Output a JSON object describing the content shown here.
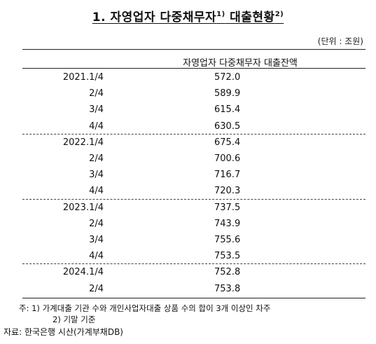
{
  "title": {
    "text": "1. 자영업자 다중채무자",
    "sup1": "1)",
    "text2": " 대출현황",
    "sup2": "2)"
  },
  "unit": "(단위 : 조원)",
  "column_header": "자영업자 다중채무자 대출잔액",
  "groups": [
    {
      "rows": [
        {
          "period": "2021.1/4",
          "value": "572.0"
        },
        {
          "period": "2/4",
          "value": "589.9"
        },
        {
          "period": "3/4",
          "value": "615.4"
        },
        {
          "period": "4/4",
          "value": "630.5"
        }
      ]
    },
    {
      "rows": [
        {
          "period": "2022.1/4",
          "value": "675.4"
        },
        {
          "period": "2/4",
          "value": "700.6"
        },
        {
          "period": "3/4",
          "value": "716.7"
        },
        {
          "period": "4/4",
          "value": "720.3"
        }
      ]
    },
    {
      "rows": [
        {
          "period": "2023.1/4",
          "value": "737.5"
        },
        {
          "period": "2/4",
          "value": "743.9"
        },
        {
          "period": "3/4",
          "value": "755.6"
        },
        {
          "period": "4/4",
          "value": "753.5"
        }
      ]
    },
    {
      "rows": [
        {
          "period": "2024.1/4",
          "value": "752.8"
        },
        {
          "period": "2/4",
          "value": "753.8"
        }
      ]
    }
  ],
  "notes": {
    "note1": "주: 1) 가계대출 기관 수와 개인사업자대출 상품 수의 합이 3개 이상인 차주",
    "note2": "2) 기말 기준",
    "source": "자료: 한국은행 시산(가계부채DB)"
  }
}
